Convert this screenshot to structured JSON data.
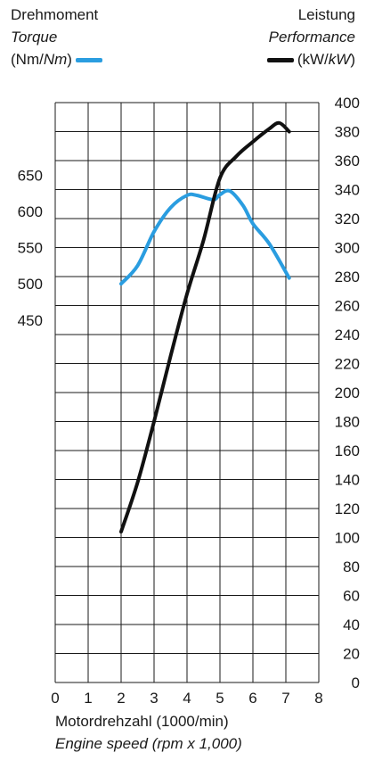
{
  "header": {
    "left_title": "Drehmoment",
    "left_subtitle": "Torque",
    "left_unit_prefix": "(Nm/",
    "left_unit_italic": "Nm",
    "left_unit_suffix": ")",
    "right_title": "Leistung",
    "right_subtitle": "Performance",
    "right_unit_prefix": "(kW/",
    "right_unit_italic": "kW",
    "right_unit_suffix": ")"
  },
  "colors": {
    "torque": "#2a9de0",
    "power": "#111111",
    "grid": "#1a1a1a"
  },
  "chart_data": {
    "type": "line",
    "xlabel": "Motordrehzahl (1000/min)",
    "xlabel_en": "Engine speed (rpm x 1,000)",
    "x_ticks": [
      "0",
      "1",
      "2",
      "3",
      "4",
      "5",
      "6",
      "7",
      "8"
    ],
    "xlim": [
      0,
      8
    ],
    "y_left_ticks": [
      "650",
      "600",
      "550",
      "500",
      "450"
    ],
    "y_left_range": [
      -50,
      750
    ],
    "y_right_ticks": [
      "400",
      "380",
      "360",
      "340",
      "320",
      "300",
      "280",
      "260",
      "240",
      "220",
      "200",
      "180",
      "160",
      "140",
      "120",
      "100",
      "80",
      "60",
      "40",
      "20",
      "0"
    ],
    "ylim_right": [
      0,
      400
    ],
    "grid": true,
    "legend": "top",
    "series": [
      {
        "name": "Drehmoment / Torque",
        "axis": "left",
        "unit": "Nm",
        "x": [
          2.0,
          2.5,
          3.0,
          3.5,
          4.0,
          4.3,
          4.8,
          5.0,
          5.3,
          5.7,
          6.0,
          6.5,
          7.1
        ],
        "y": [
          500,
          525,
          572,
          605,
          622,
          622,
          616,
          623,
          628,
          608,
          583,
          555,
          508
        ]
      },
      {
        "name": "Leistung / Performance",
        "axis": "right",
        "unit": "kW",
        "x": [
          2.0,
          2.5,
          3.0,
          3.5,
          4.0,
          4.5,
          5.0,
          5.5,
          6.0,
          6.5,
          6.8,
          7.1
        ],
        "y": [
          104,
          138,
          180,
          225,
          268,
          305,
          348,
          363,
          373,
          382,
          386,
          380
        ]
      }
    ]
  }
}
